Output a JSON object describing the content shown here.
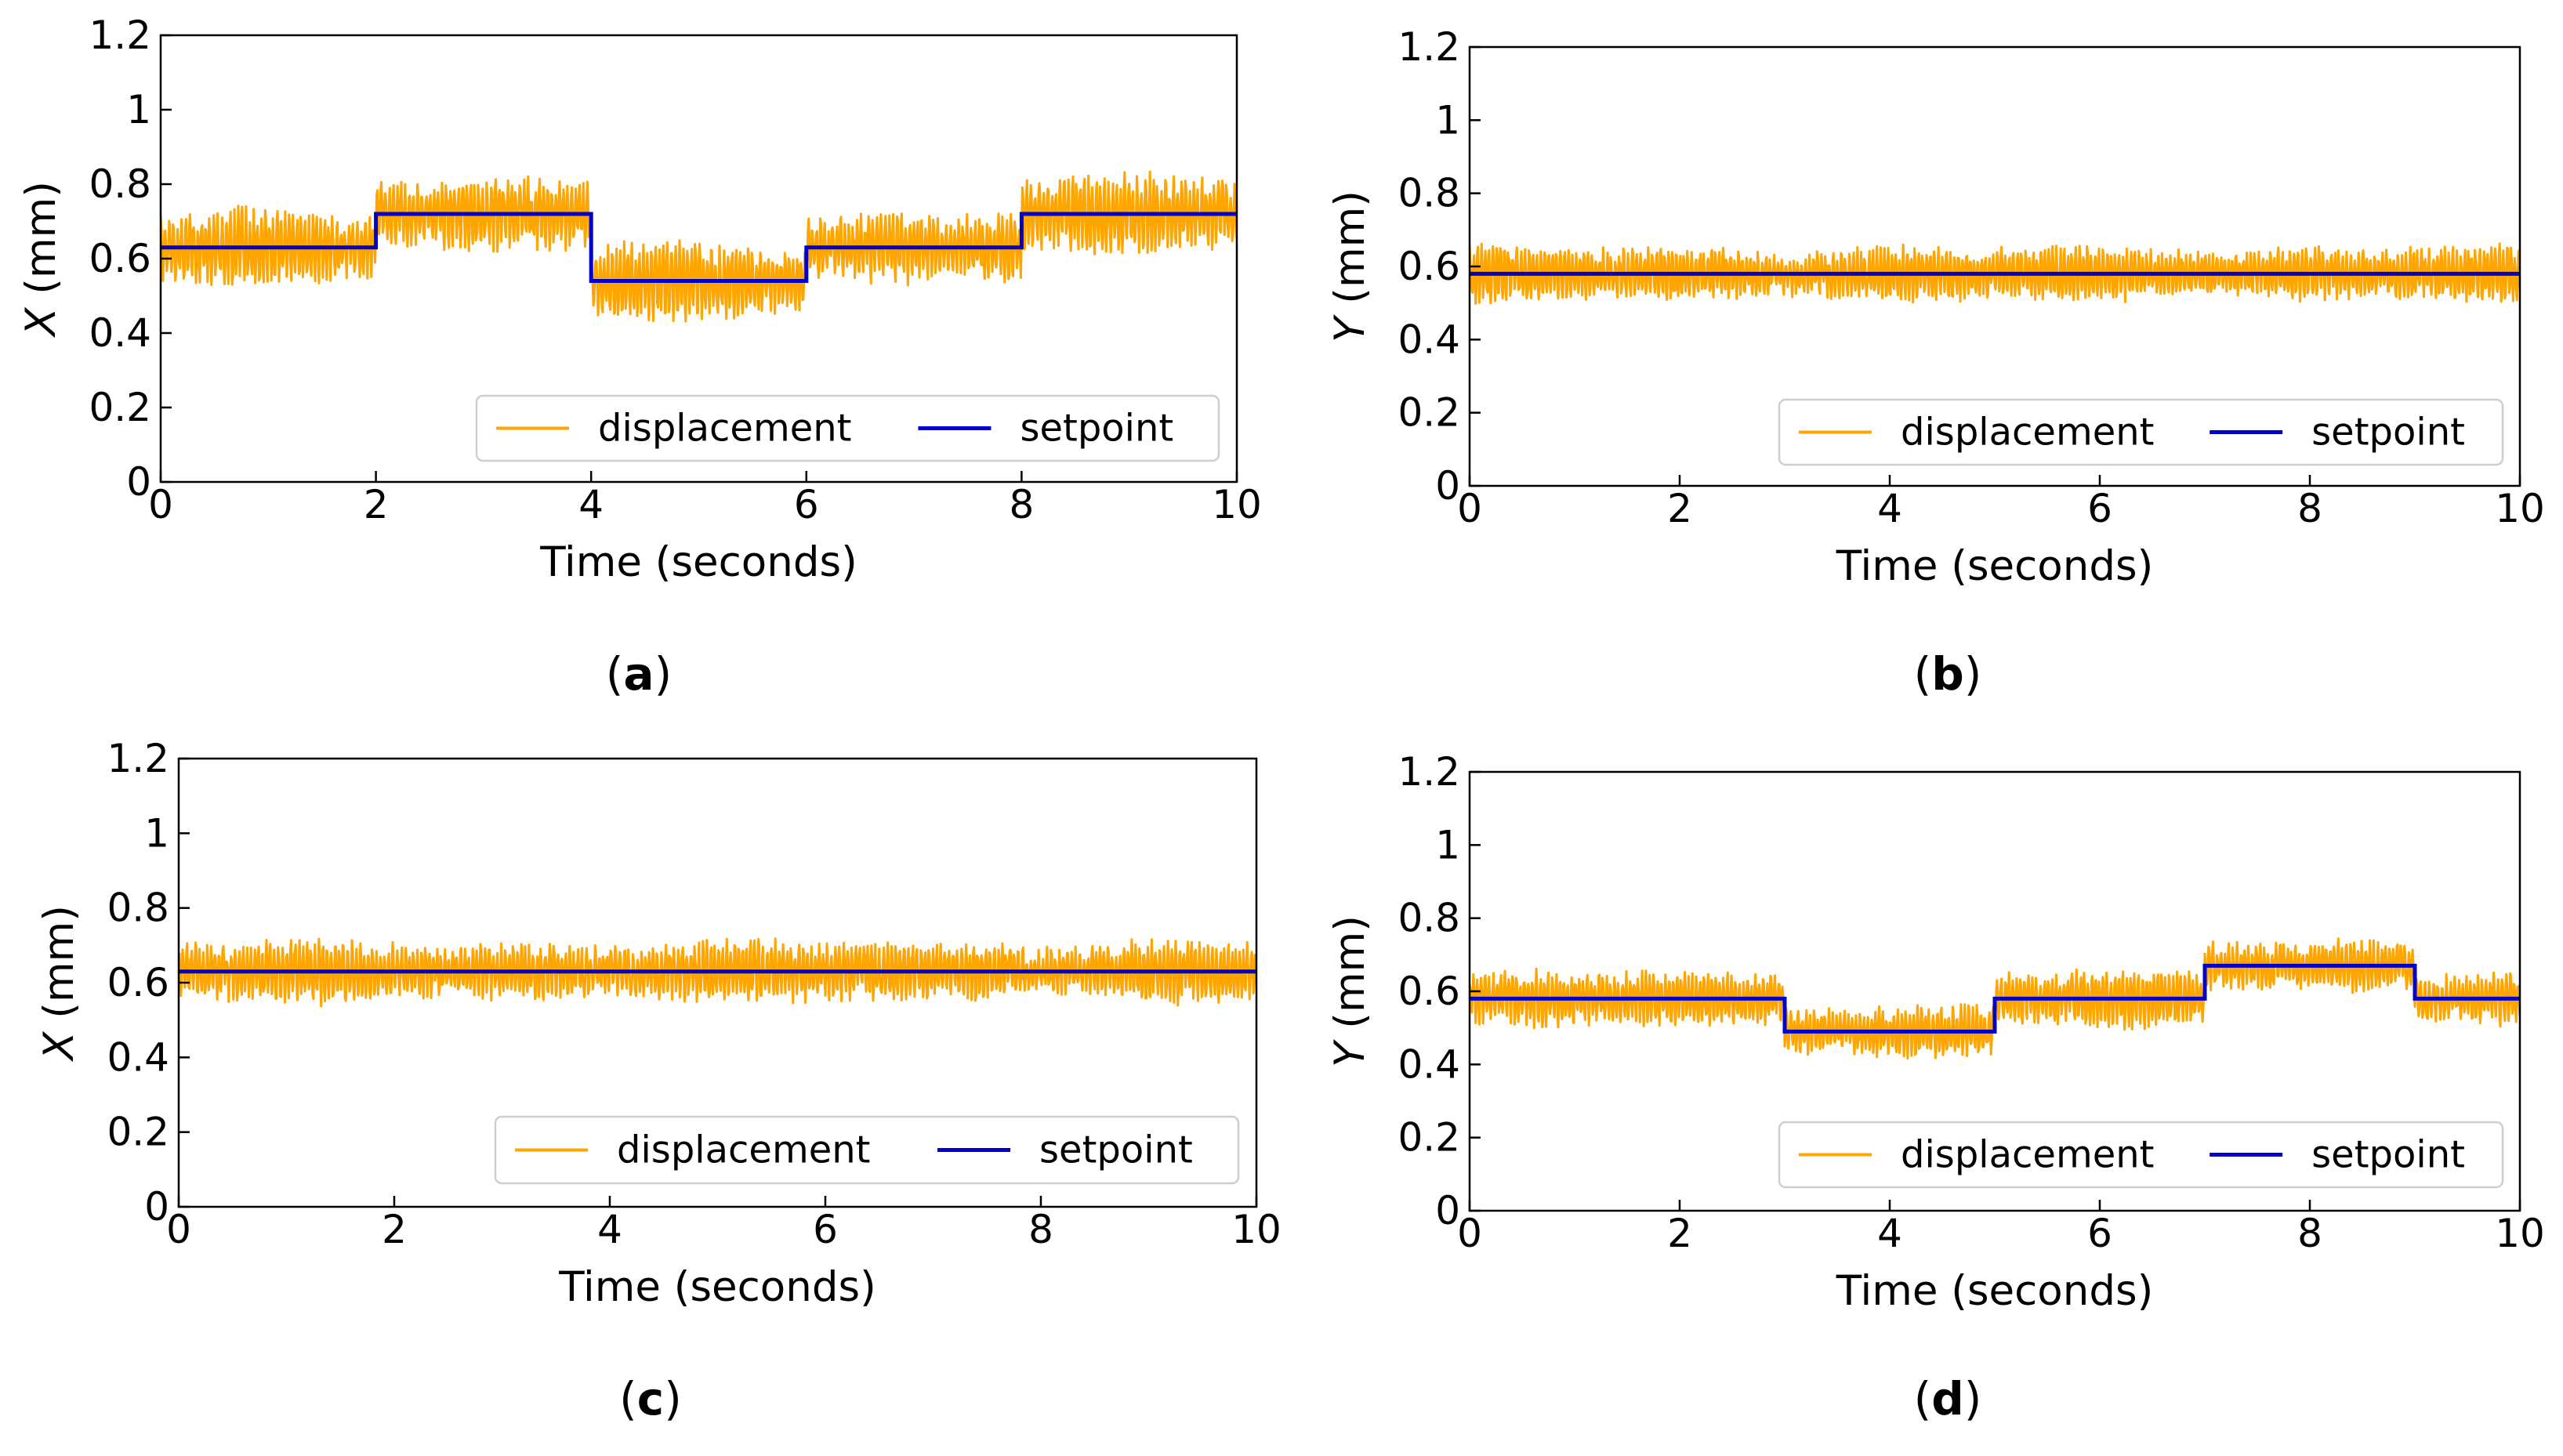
{
  "chart_data": [
    {
      "panel": "a",
      "caption_label": "a",
      "type": "line",
      "xlabel": "Time (seconds)",
      "ylabel_var": "X",
      "ylabel_unit": " (mm)",
      "xlim": [
        0,
        10
      ],
      "ylim": [
        0,
        1.2
      ],
      "xticks": [
        "0",
        "2",
        "4",
        "6",
        "8",
        "10"
      ],
      "yticks": [
        "0",
        "0.2",
        "0.4",
        "0.6",
        "0.8",
        "1",
        "1.2"
      ],
      "noise_amplitude": 0.075,
      "series": [
        {
          "name": "displacement",
          "color": "#FFA500"
        },
        {
          "name": "setpoint",
          "color": "#0000CC",
          "steps": [
            [
              0,
              0.63
            ],
            [
              2,
              0.72
            ],
            [
              4,
              0.54
            ],
            [
              6,
              0.63
            ],
            [
              8,
              0.72
            ],
            [
              10,
              0.72
            ]
          ]
        }
      ],
      "legend": {
        "position": "lower right",
        "entries": [
          "displacement",
          "setpoint"
        ]
      }
    },
    {
      "panel": "b",
      "caption_label": "b",
      "type": "line",
      "xlabel": "Time (seconds)",
      "ylabel_var": "Y",
      "ylabel_unit": " (mm)",
      "xlim": [
        0,
        10
      ],
      "ylim": [
        0,
        1.2
      ],
      "xticks": [
        "0",
        "2",
        "4",
        "6",
        "8",
        "10"
      ],
      "yticks": [
        "0",
        "0.2",
        "0.4",
        "0.6",
        "0.8",
        "1",
        "1.2"
      ],
      "noise_amplitude": 0.055,
      "series": [
        {
          "name": "displacement",
          "color": "#FFA500"
        },
        {
          "name": "setpoint",
          "color": "#0000CC",
          "steps": [
            [
              0,
              0.58
            ],
            [
              10,
              0.58
            ]
          ]
        }
      ],
      "legend": {
        "position": "lower right",
        "entries": [
          "displacement",
          "setpoint"
        ]
      }
    },
    {
      "panel": "c",
      "caption_label": "c",
      "type": "line",
      "xlabel": "Time (seconds)",
      "ylabel_var": "X",
      "ylabel_unit": " (mm)",
      "xlim": [
        0,
        10
      ],
      "ylim": [
        0,
        1.2
      ],
      "xticks": [
        "0",
        "2",
        "4",
        "6",
        "8",
        "10"
      ],
      "yticks": [
        "0",
        "0.2",
        "0.4",
        "0.6",
        "0.8",
        "1",
        "1.2"
      ],
      "noise_amplitude": 0.06,
      "series": [
        {
          "name": "displacement",
          "color": "#FFA500"
        },
        {
          "name": "setpoint",
          "color": "#0000CC",
          "steps": [
            [
              0,
              0.63
            ],
            [
              10,
              0.63
            ]
          ]
        }
      ],
      "legend": {
        "position": "lower right",
        "entries": [
          "displacement",
          "setpoint"
        ]
      }
    },
    {
      "panel": "d",
      "caption_label": "d",
      "type": "line",
      "xlabel": "Time (seconds)",
      "ylabel_var": "Y",
      "ylabel_unit": " (mm)",
      "xlim": [
        0,
        10
      ],
      "ylim": [
        0,
        1.2
      ],
      "xticks": [
        "0",
        "2",
        "4",
        "6",
        "8",
        "10"
      ],
      "yticks": [
        "0",
        "0.2",
        "0.4",
        "0.6",
        "0.8",
        "1",
        "1.2"
      ],
      "noise_amplitude": 0.055,
      "series": [
        {
          "name": "displacement",
          "color": "#FFA500"
        },
        {
          "name": "setpoint",
          "color": "#0000CC",
          "steps": [
            [
              0,
              0.58
            ],
            [
              3,
              0.49
            ],
            [
              5,
              0.58
            ],
            [
              7,
              0.67
            ],
            [
              9,
              0.58
            ],
            [
              10,
              0.58
            ]
          ]
        }
      ],
      "legend": {
        "position": "lower right",
        "entries": [
          "displacement",
          "setpoint"
        ]
      }
    }
  ]
}
